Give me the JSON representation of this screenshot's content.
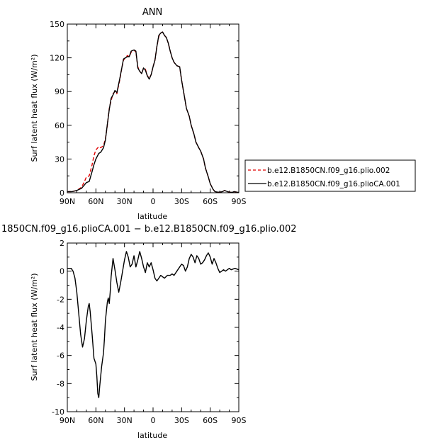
{
  "chart_data": [
    {
      "type": "line",
      "title": "ANN",
      "xlabel": "latitude",
      "ylabel": "Surf latent heat flux (W/m²)",
      "xlim": [
        90,
        -90
      ],
      "ylim": [
        0,
        150
      ],
      "xticks": [
        "90N",
        "60N",
        "30N",
        "0",
        "30S",
        "60S",
        "90S"
      ],
      "xtick_values": [
        90,
        60,
        30,
        0,
        -30,
        -60,
        -90
      ],
      "yticks": [
        0,
        30,
        60,
        90,
        120,
        150
      ],
      "legend": "outside-right",
      "series": [
        {
          "name": "b.e12.B1850CN.f09_g16.plio.002",
          "color": "#e00000",
          "dash": "dashed",
          "x": [
            90,
            85,
            80,
            75,
            72,
            70,
            67,
            64,
            62,
            60,
            57,
            55,
            52,
            50,
            48,
            46,
            44,
            42,
            40,
            38,
            35,
            33,
            31,
            29,
            27,
            25,
            23,
            20,
            18,
            16,
            14,
            12,
            10,
            8,
            6,
            4,
            2,
            0,
            -2,
            -4,
            -6,
            -8,
            -10,
            -12,
            -14,
            -16,
            -18,
            -20,
            -22,
            -25,
            -28,
            -30,
            -33,
            -35,
            -38,
            -40,
            -43,
            -45,
            -48,
            -50,
            -53,
            -55,
            -58,
            -60,
            -63,
            -65,
            -68,
            -70,
            -73,
            -75,
            -78,
            -80,
            -83,
            -85,
            -88,
            -90
          ],
          "values": [
            1,
            1,
            2,
            5,
            10,
            14,
            15,
            25,
            33,
            38,
            41,
            40,
            42,
            48,
            60,
            75,
            82,
            88,
            90,
            88,
            100,
            110,
            118,
            120,
            122,
            121,
            125,
            127,
            125,
            112,
            108,
            106,
            111,
            110,
            104,
            102,
            105,
            112,
            118,
            130,
            139,
            142,
            143,
            140,
            138,
            133,
            126,
            120,
            116,
            113,
            112,
            100,
            85,
            75,
            68,
            60,
            52,
            45,
            40,
            37,
            30,
            22,
            14,
            8,
            3,
            1,
            0.5,
            0.5,
            1,
            2,
            1,
            0.5,
            0.3,
            1,
            0.5,
            0.3
          ]
        },
        {
          "name": "b.e12.B1850CN.f09_g16.plioCA.001",
          "color": "#000000",
          "dash": "solid",
          "x": [
            90,
            85,
            80,
            75,
            72,
            70,
            67,
            64,
            62,
            60,
            57,
            55,
            52,
            50,
            48,
            46,
            44,
            42,
            40,
            38,
            35,
            33,
            31,
            29,
            27,
            25,
            23,
            20,
            18,
            16,
            14,
            12,
            10,
            8,
            6,
            4,
            2,
            0,
            -2,
            -4,
            -6,
            -8,
            -10,
            -12,
            -14,
            -16,
            -18,
            -20,
            -22,
            -25,
            -28,
            -30,
            -33,
            -35,
            -38,
            -40,
            -43,
            -45,
            -48,
            -50,
            -53,
            -55,
            -58,
            -60,
            -63,
            -65,
            -68,
            -70,
            -73,
            -75,
            -78,
            -80,
            -83,
            -85,
            -88,
            -90
          ],
          "values": [
            1,
            1,
            2,
            4,
            7,
            9,
            10,
            19,
            25,
            30,
            35,
            36,
            40,
            47,
            61,
            74,
            84,
            87,
            91,
            89,
            101,
            110,
            119,
            120,
            121,
            121,
            126,
            127,
            126,
            111,
            108,
            106,
            111,
            109,
            104,
            101,
            105,
            112,
            118,
            130,
            140,
            142,
            143,
            140,
            138,
            133,
            126,
            120,
            116,
            113,
            112,
            100,
            85,
            75,
            68,
            60,
            52,
            45,
            40,
            37,
            30,
            22,
            14,
            8,
            3,
            1,
            0.5,
            0.5,
            1,
            2,
            1,
            0.5,
            0.3,
            1,
            0.5,
            0.3
          ]
        }
      ]
    },
    {
      "type": "line",
      "title": "1850CN.f09_g16.plioCA.001 − b.e12.B1850CN.f09_g16.plio.002",
      "xlabel": "latitude",
      "ylabel": "Surf latent heat flux (W/m²)",
      "xlim": [
        90,
        -90
      ],
      "ylim": [
        -10,
        2
      ],
      "xticks": [
        "90N",
        "60N",
        "30N",
        "0",
        "30S",
        "60S",
        "90S"
      ],
      "xtick_values": [
        90,
        60,
        30,
        0,
        -30,
        -60,
        -90
      ],
      "yticks": [
        -10,
        -8,
        -6,
        -4,
        -2,
        0,
        2
      ],
      "series": [
        {
          "color": "#000000",
          "dash": "solid",
          "x": [
            90,
            86,
            84,
            82,
            80,
            78,
            76,
            74,
            72,
            70,
            68,
            67,
            66,
            64,
            62,
            60,
            59,
            58,
            57,
            56,
            54,
            52,
            51,
            50,
            48,
            47,
            46,
            45,
            44,
            42,
            40,
            38,
            36,
            34,
            32,
            30,
            28,
            26,
            24,
            22,
            20,
            18,
            16,
            14,
            12,
            10,
            8,
            6,
            4,
            2,
            0,
            -2,
            -4,
            -6,
            -8,
            -10,
            -12,
            -15,
            -18,
            -20,
            -22,
            -25,
            -28,
            -30,
            -32,
            -34,
            -36,
            -38,
            -40,
            -42,
            -44,
            -46,
            -48,
            -50,
            -52,
            -54,
            -56,
            -58,
            -60,
            -62,
            -64,
            -66,
            -68,
            -70,
            -72,
            -74,
            -76,
            -78,
            -80,
            -82,
            -84,
            -86,
            -88,
            -90
          ],
          "values": [
            0.2,
            0.2,
            0.0,
            -0.5,
            -1.5,
            -3.0,
            -4.5,
            -5.4,
            -4.8,
            -3.5,
            -2.5,
            -2.3,
            -2.9,
            -4.5,
            -6.2,
            -6.6,
            -7.5,
            -8.7,
            -9.0,
            -8.2,
            -6.8,
            -5.8,
            -4.8,
            -3.5,
            -2.2,
            -1.9,
            -2.3,
            -1.5,
            -0.4,
            0.9,
            0.1,
            -0.8,
            -1.5,
            -0.8,
            0.0,
            0.8,
            1.4,
            1.0,
            0.3,
            0.5,
            1.1,
            0.3,
            0.8,
            1.4,
            0.9,
            0.3,
            -0.1,
            0.6,
            0.3,
            0.6,
            0.1,
            -0.5,
            -0.7,
            -0.5,
            -0.3,
            -0.4,
            -0.5,
            -0.3,
            -0.3,
            -0.2,
            -0.3,
            0.0,
            0.3,
            0.5,
            0.4,
            0.0,
            0.3,
            0.9,
            1.2,
            1.0,
            0.6,
            1.1,
            0.9,
            0.5,
            0.6,
            0.8,
            1.1,
            1.3,
            1.0,
            0.5,
            0.9,
            0.6,
            0.2,
            -0.1,
            0.0,
            0.1,
            0.0,
            0.1,
            0.2,
            0.1,
            0.15,
            0.2,
            0.15,
            0.1
          ]
        }
      ]
    }
  ]
}
